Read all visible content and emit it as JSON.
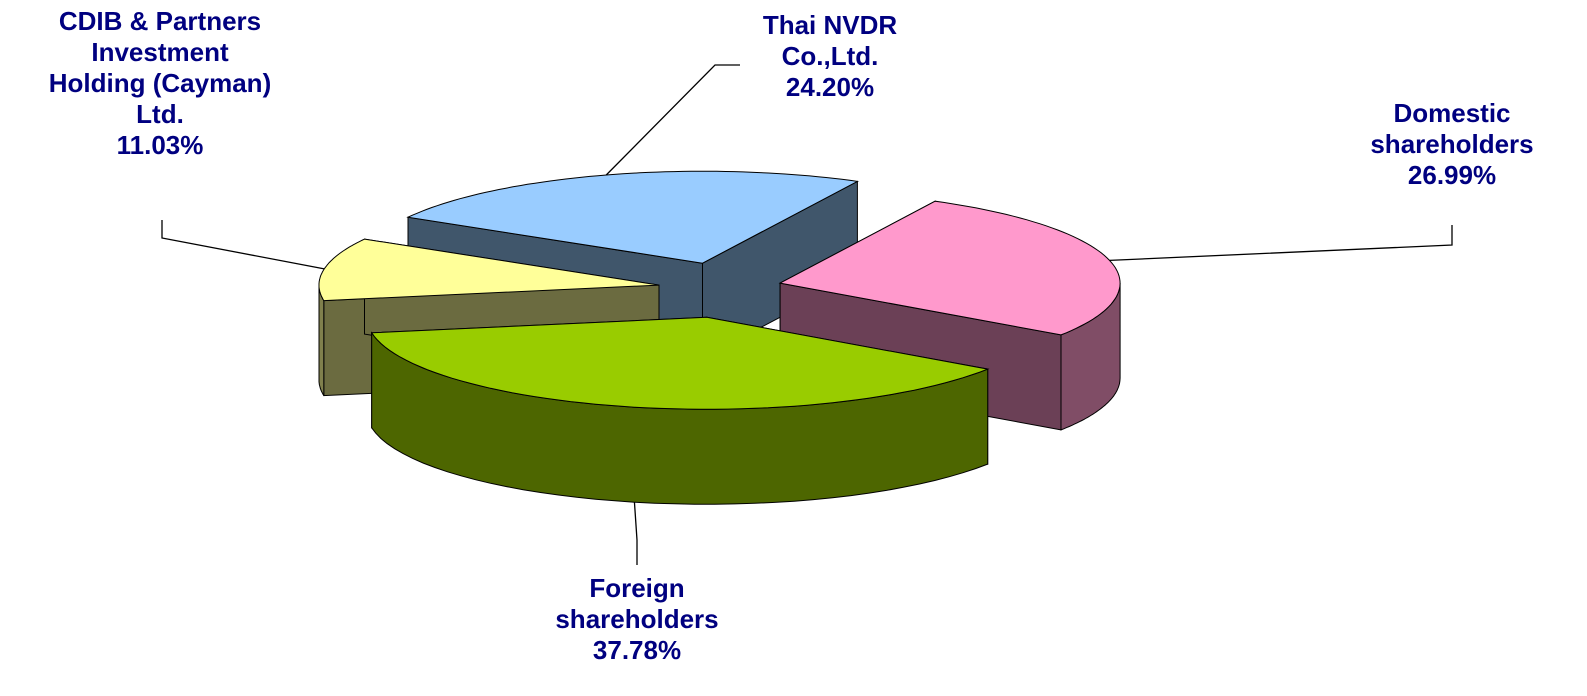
{
  "chart_data": {
    "type": "pie3d",
    "categories": [
      "Thai NVDR\nCo.,Ltd.",
      "Domestic\nshareholders",
      "Foreign\nshareholders",
      "CDIB & Partners\nInvestment\nHolding (Cayman)\nLtd."
    ],
    "values": [
      24.2,
      26.99,
      37.78,
      11.03
    ],
    "value_labels": [
      "24.20%",
      "26.99%",
      "37.78%",
      "11.03%"
    ],
    "colors": [
      "#99ccff",
      "#ff99cc",
      "#99cc00",
      "#ffff99"
    ]
  }
}
